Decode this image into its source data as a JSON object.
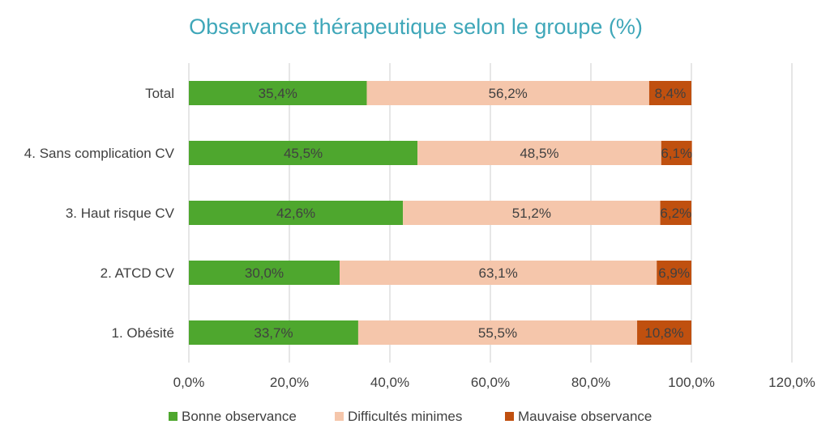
{
  "chart_data": {
    "type": "bar",
    "orientation": "horizontal",
    "stacked": true,
    "title": "Observance thérapeutique selon le groupe (%)",
    "categories": [
      "Total",
      "4. Sans complication CV",
      "3. Haut risque CV",
      "2. ATCD CV",
      "1. Obésité"
    ],
    "series": [
      {
        "name": "Bonne observance",
        "color": "#4ea72e",
        "values": [
          35.4,
          45.5,
          42.6,
          30.0,
          33.7
        ],
        "labels": [
          "35,4%",
          "45,5%",
          "42,6%",
          "30,0%",
          "33,7%"
        ]
      },
      {
        "name": "Difficultés minimes",
        "color": "#f5c6ab",
        "values": [
          56.2,
          48.5,
          51.2,
          63.1,
          55.5
        ],
        "labels": [
          "56,2%",
          "48,5%",
          "51,2%",
          "63,1%",
          "55,5%"
        ]
      },
      {
        "name": "Mauvaise observance",
        "color": "#c0500f",
        "values": [
          8.4,
          6.1,
          6.2,
          6.9,
          10.8
        ],
        "labels": [
          "8,4%",
          "6,1%",
          "6,2%",
          "6,9%",
          "10,8%"
        ]
      }
    ],
    "xlim": [
      0,
      120
    ],
    "xticks": [
      0,
      20,
      40,
      60,
      80,
      100,
      120
    ],
    "xtick_labels": [
      "0,0%",
      "20,0%",
      "40,0%",
      "60,0%",
      "80,0%",
      "100,0%",
      "120,0%"
    ],
    "grid": true,
    "legend_position": "bottom",
    "xlabel": "",
    "ylabel": ""
  }
}
